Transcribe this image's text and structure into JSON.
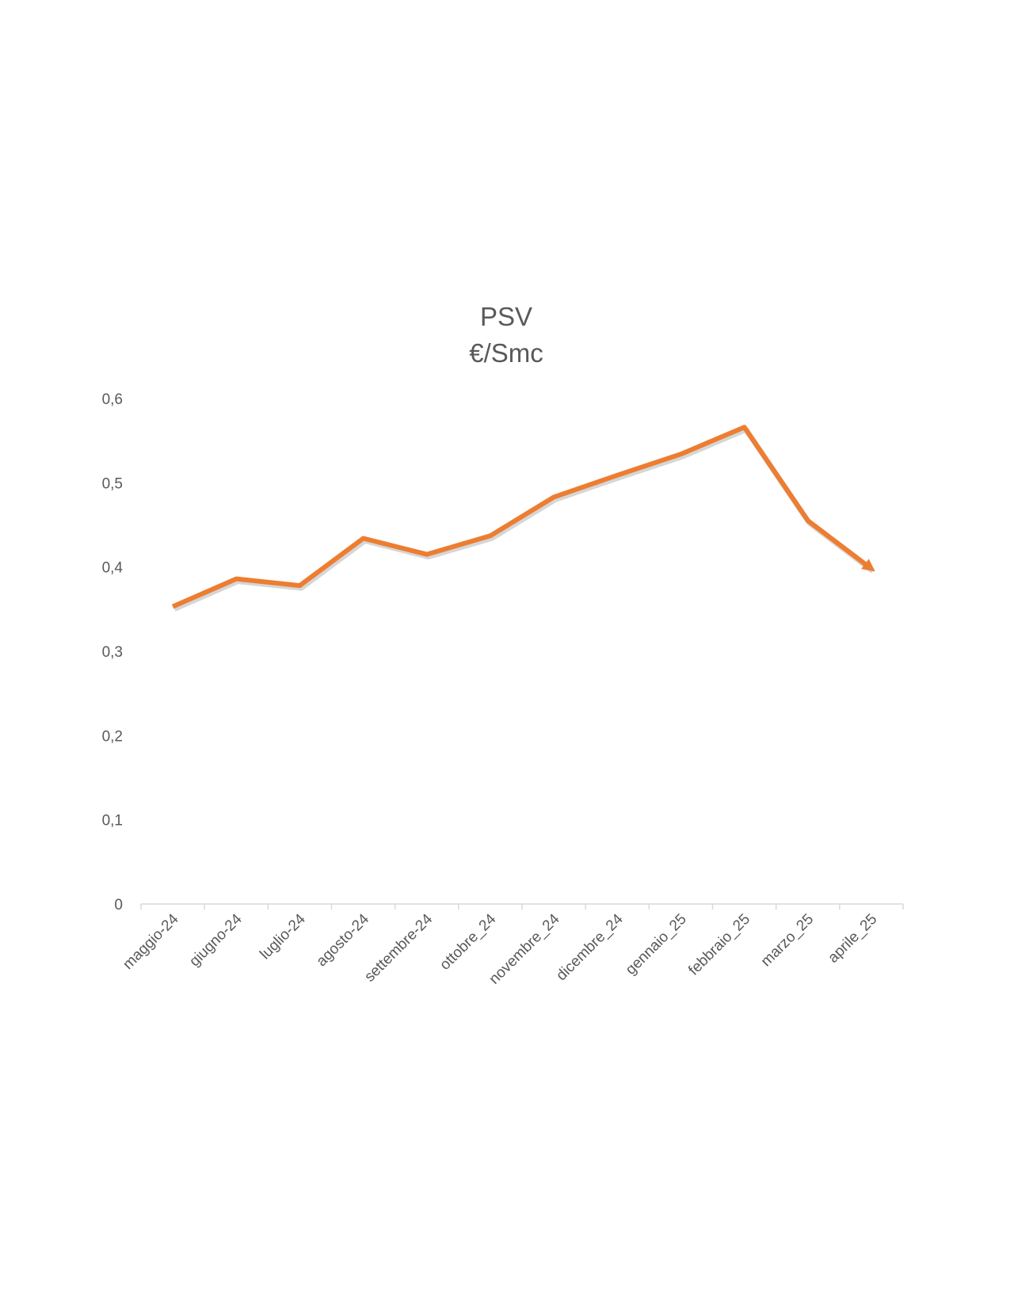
{
  "chart_data": {
    "type": "line",
    "title": "PSV",
    "subtitle": "€/Smc",
    "xlabel": "",
    "ylabel": "",
    "categories": [
      "maggio-24",
      "giugno-24",
      "luglio-24",
      "agosto-24",
      "settembre-24",
      "ottobre_24",
      "novembre_24",
      "dicembre_24",
      "gennaio_25",
      "febbraio_25",
      "marzo_25",
      "aprile_25"
    ],
    "series": [
      {
        "values": [
          0.353,
          0.386,
          0.378,
          0.434,
          0.415,
          0.437,
          0.483,
          0.509,
          0.534,
          0.566,
          0.455,
          0.398
        ],
        "color": "#ED7D31"
      }
    ],
    "ylim": [
      0,
      0.6
    ],
    "yticks": [
      "0",
      "0,1",
      "0,2",
      "0,3",
      "0,4",
      "0,5",
      "0,6"
    ],
    "grid": false,
    "legend": "none",
    "axis_color": "#D9D9D9",
    "text_color": "#595959"
  }
}
